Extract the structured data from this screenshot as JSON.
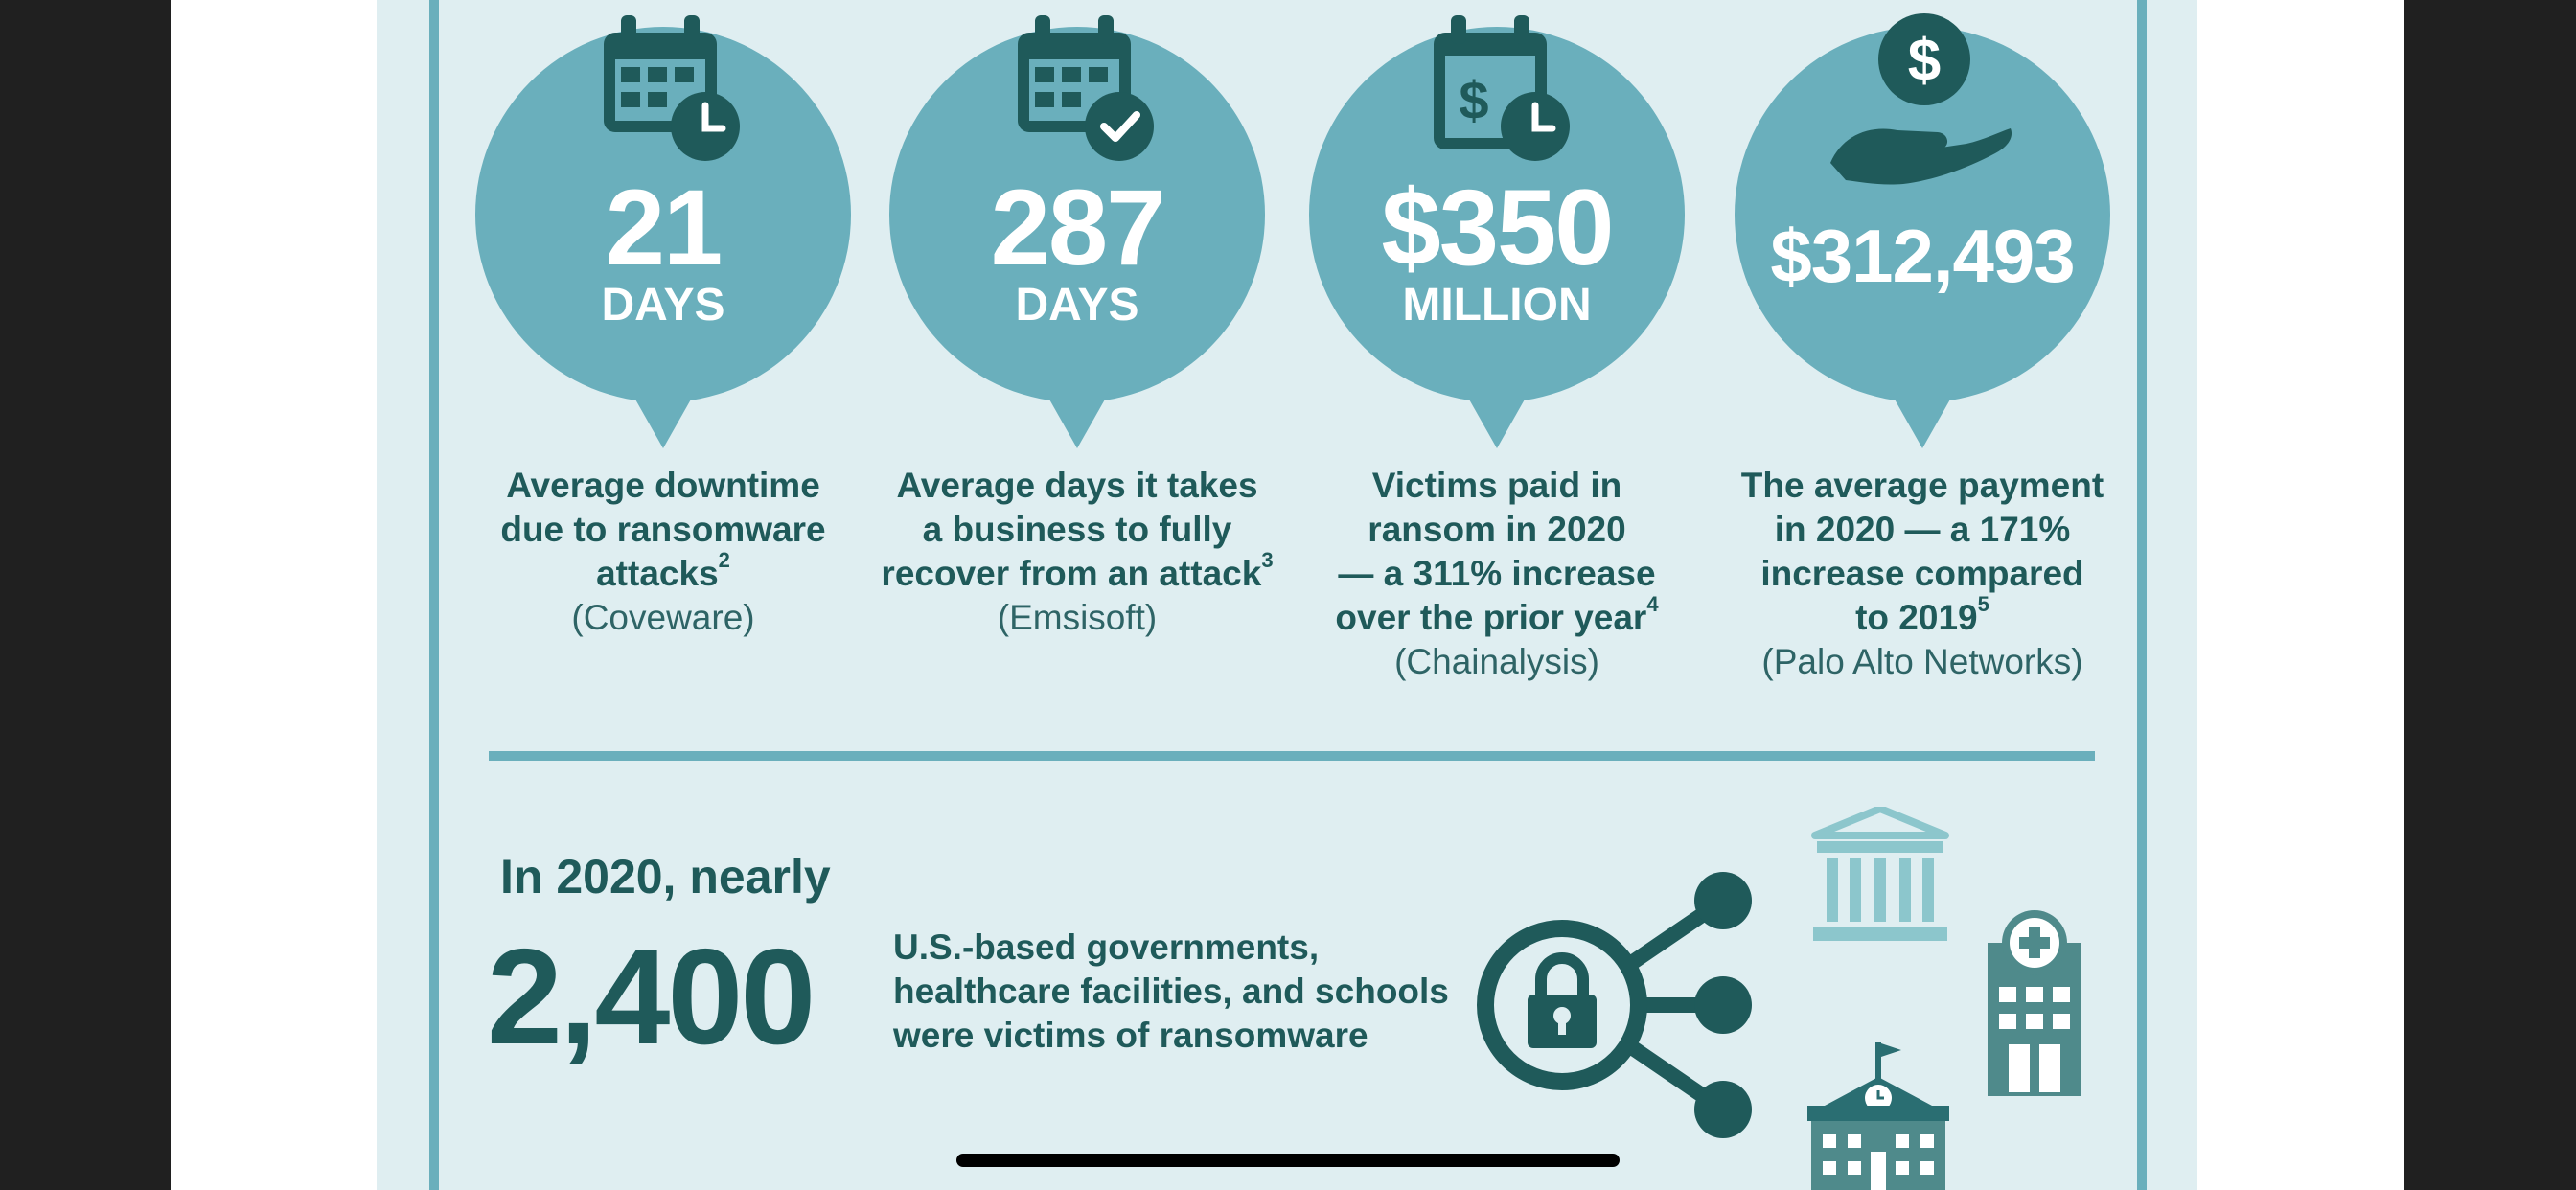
{
  "stats": [
    {
      "number": "21",
      "unit": "DAYS",
      "icon": "calendar-clock-icon",
      "lines": [
        "Average downtime",
        "due to ransomware"
      ],
      "last_line": "attacks",
      "footnote": "2",
      "source": "(Coveware)"
    },
    {
      "number": "287",
      "unit": "DAYS",
      "icon": "calendar-check-icon",
      "lines": [
        "Average days it takes",
        "a business to fully"
      ],
      "last_line": "recover from an attack",
      "footnote": "3",
      "source": "(Emsisoft)"
    },
    {
      "number": "$350",
      "unit": "MILLION",
      "icon": "calendar-dollar-clock-icon",
      "lines": [
        "Victims paid in",
        "ransom in 2020",
        "— a 311% increase"
      ],
      "last_line": "over the prior year",
      "footnote": "4",
      "source": "(Chainalysis)"
    },
    {
      "number": "$312,493",
      "unit": "",
      "icon": "hand-dollar-coin-icon",
      "lines": [
        "The average payment",
        "in 2020 — a 171%",
        "increase compared"
      ],
      "last_line": "to 2019",
      "footnote": "5",
      "source": "(Palo Alto Networks)"
    }
  ],
  "summary": {
    "lead": "In 2020, nearly",
    "count": "2,400",
    "lines": [
      "U.S.-based governments,",
      "healthcare facilities, and schools",
      "were victims of ransomware"
    ]
  },
  "icons": [
    "lock-network-icon",
    "government-building-icon",
    "hospital-icon",
    "school-icon"
  ],
  "colors": {
    "panel": "#dfeef1",
    "accent": "#6aafbc",
    "dark_teal": "#1f5a5a",
    "light_teal_icon": "#8cc6cc",
    "mid_teal_icon": "#4f8a8b"
  }
}
